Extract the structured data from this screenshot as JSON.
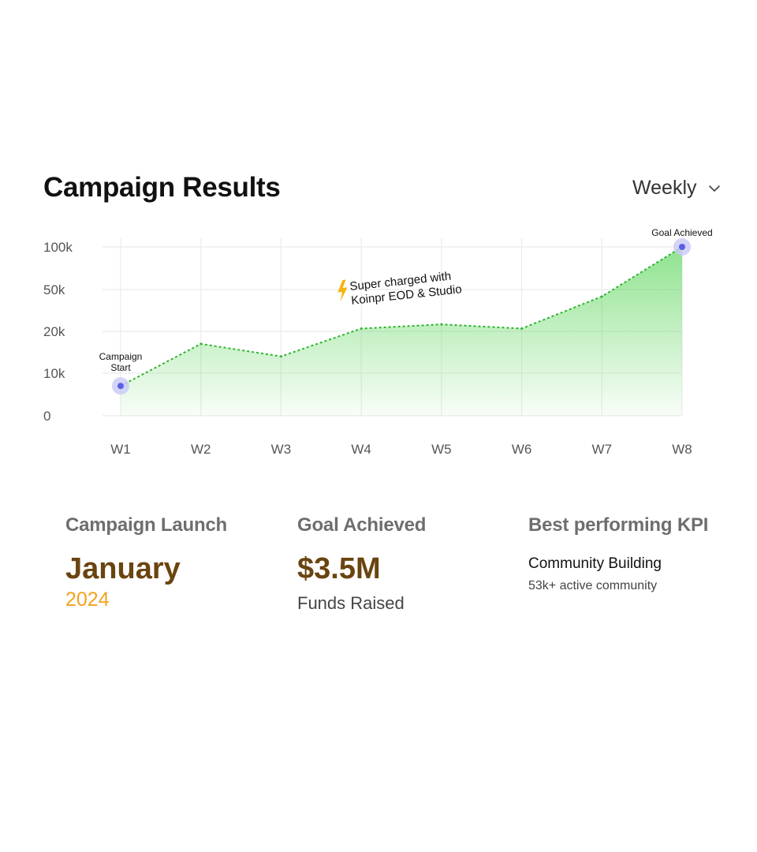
{
  "header": {
    "title": "Campaign Results",
    "period_label": "Weekly"
  },
  "chart_data": {
    "type": "area",
    "x": [
      "W1",
      "W2",
      "W3",
      "W4",
      "W5",
      "W6",
      "W7",
      "W8"
    ],
    "y_ticks": [
      "100k",
      "50k",
      "20k",
      "10k",
      "0"
    ],
    "series": [
      {
        "values": [
          7000,
          17000,
          14000,
          22000,
          25000,
          22000,
          45000,
          100000
        ]
      }
    ],
    "annotations": [
      {
        "text": "Campaign Start",
        "lines": [
          "Campaign",
          "Start"
        ],
        "x": "W1"
      },
      {
        "text": "Super charged with Koinpr EOD & Studio",
        "lines": [
          "Super charged with",
          "Koinpr EOD & Studio"
        ],
        "icon": "lightning-icon",
        "x": "W4"
      },
      {
        "text": "Goal Achieved",
        "lines": [
          "Goal Achieved"
        ],
        "x": "W8"
      }
    ],
    "colors": {
      "line": "#2db52d",
      "fill": "#5fd65f",
      "marker": "#5a5fe6",
      "marker_halo": "#c9c9f6",
      "grid": "#ebebeb"
    },
    "grid": true,
    "legend": "none"
  },
  "kpis": {
    "launch": {
      "heading": "Campaign Launch",
      "value": "January",
      "year": "2024"
    },
    "goal": {
      "heading": "Goal Achieved",
      "value": "$3.5M",
      "sub": "Funds Raised"
    },
    "best": {
      "heading": "Best performing KPI",
      "kpi_name": "Community Building",
      "kpi_detail": "53k+ active community"
    }
  }
}
